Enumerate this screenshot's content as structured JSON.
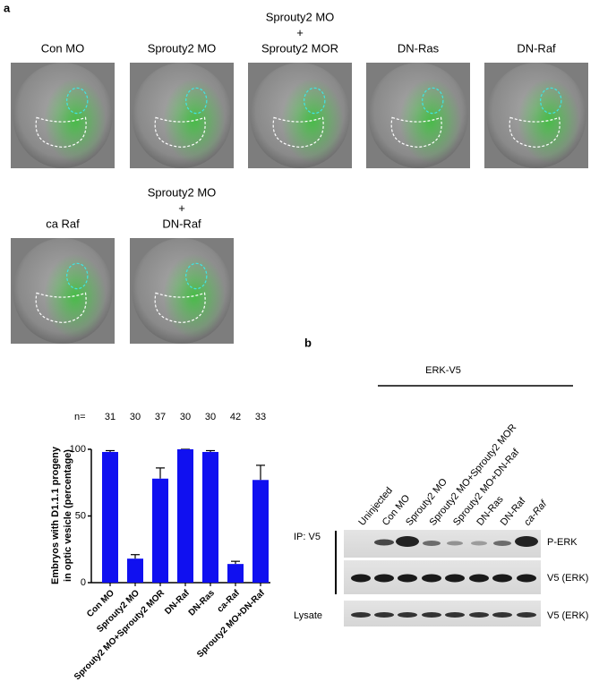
{
  "panel_a": {
    "label": "a",
    "row1": [
      [
        "Con MO"
      ],
      [
        "Sprouty2 MO"
      ],
      [
        "Sprouty2 MO",
        "+",
        "Sprouty2 MOR"
      ],
      [
        "DN-Ras"
      ],
      [
        "DN-Raf"
      ]
    ],
    "row2": [
      [
        "ca Raf"
      ],
      [
        "Sprouty2 MO",
        "+",
        "DN-Raf"
      ]
    ]
  },
  "chart_data": {
    "type": "bar",
    "y_label": [
      "Embryos with D1.1.1 progeny",
      "in optic vesicle (percentage)"
    ],
    "categories": [
      "Con MO",
      "Sprouty2 MO",
      "Sprouty2 MO+Sprouty2 MOR",
      "DN-Raf",
      "DN-Ras",
      "ca-Raf",
      "Sprouty2 MO+DN-Raf"
    ],
    "values": [
      98,
      18,
      78,
      100,
      98,
      14,
      77
    ],
    "errors": [
      1,
      3,
      8,
      0,
      1,
      2,
      11
    ],
    "n_label": "n=",
    "n_values": [
      31,
      30,
      37,
      30,
      30,
      42,
      33
    ],
    "color": "#1010f0",
    "ylim": [
      0,
      100
    ],
    "yticks": [
      0,
      50,
      100
    ]
  },
  "panel_b": {
    "label": "b",
    "header": "ERK-V5",
    "lanes": [
      "Uninjected",
      "Con MO",
      "Sprouty2 MO",
      "Sprouty2 MO+Sprouty2 MOR",
      "Sprouty2 MO+DN-Raf",
      "DN-Ras",
      "DN-Raf",
      "ca-Raf"
    ],
    "ip_label": "IP: V5",
    "lysate_label": "Lysate",
    "blot_labels": [
      "P-ERK",
      "V5 (ERK)",
      "V5 (ERK)"
    ]
  }
}
